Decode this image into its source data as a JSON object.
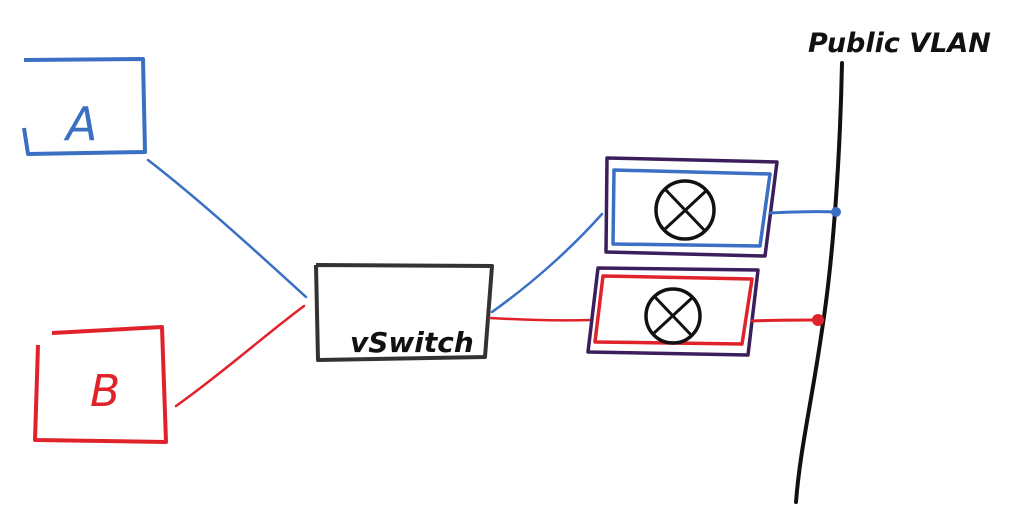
{
  "labels": {
    "node_a": "A",
    "node_b": "B",
    "vswitch": "vSwitch",
    "public_vlan": "Public VLAN"
  },
  "colors": {
    "blue": "#3a6fc4",
    "red": "#e0222b",
    "purple": "#3b1f5c",
    "black": "#111111"
  },
  "icons": {
    "router_top": "router-x-circle-icon",
    "router_bottom": "router-x-circle-icon"
  }
}
